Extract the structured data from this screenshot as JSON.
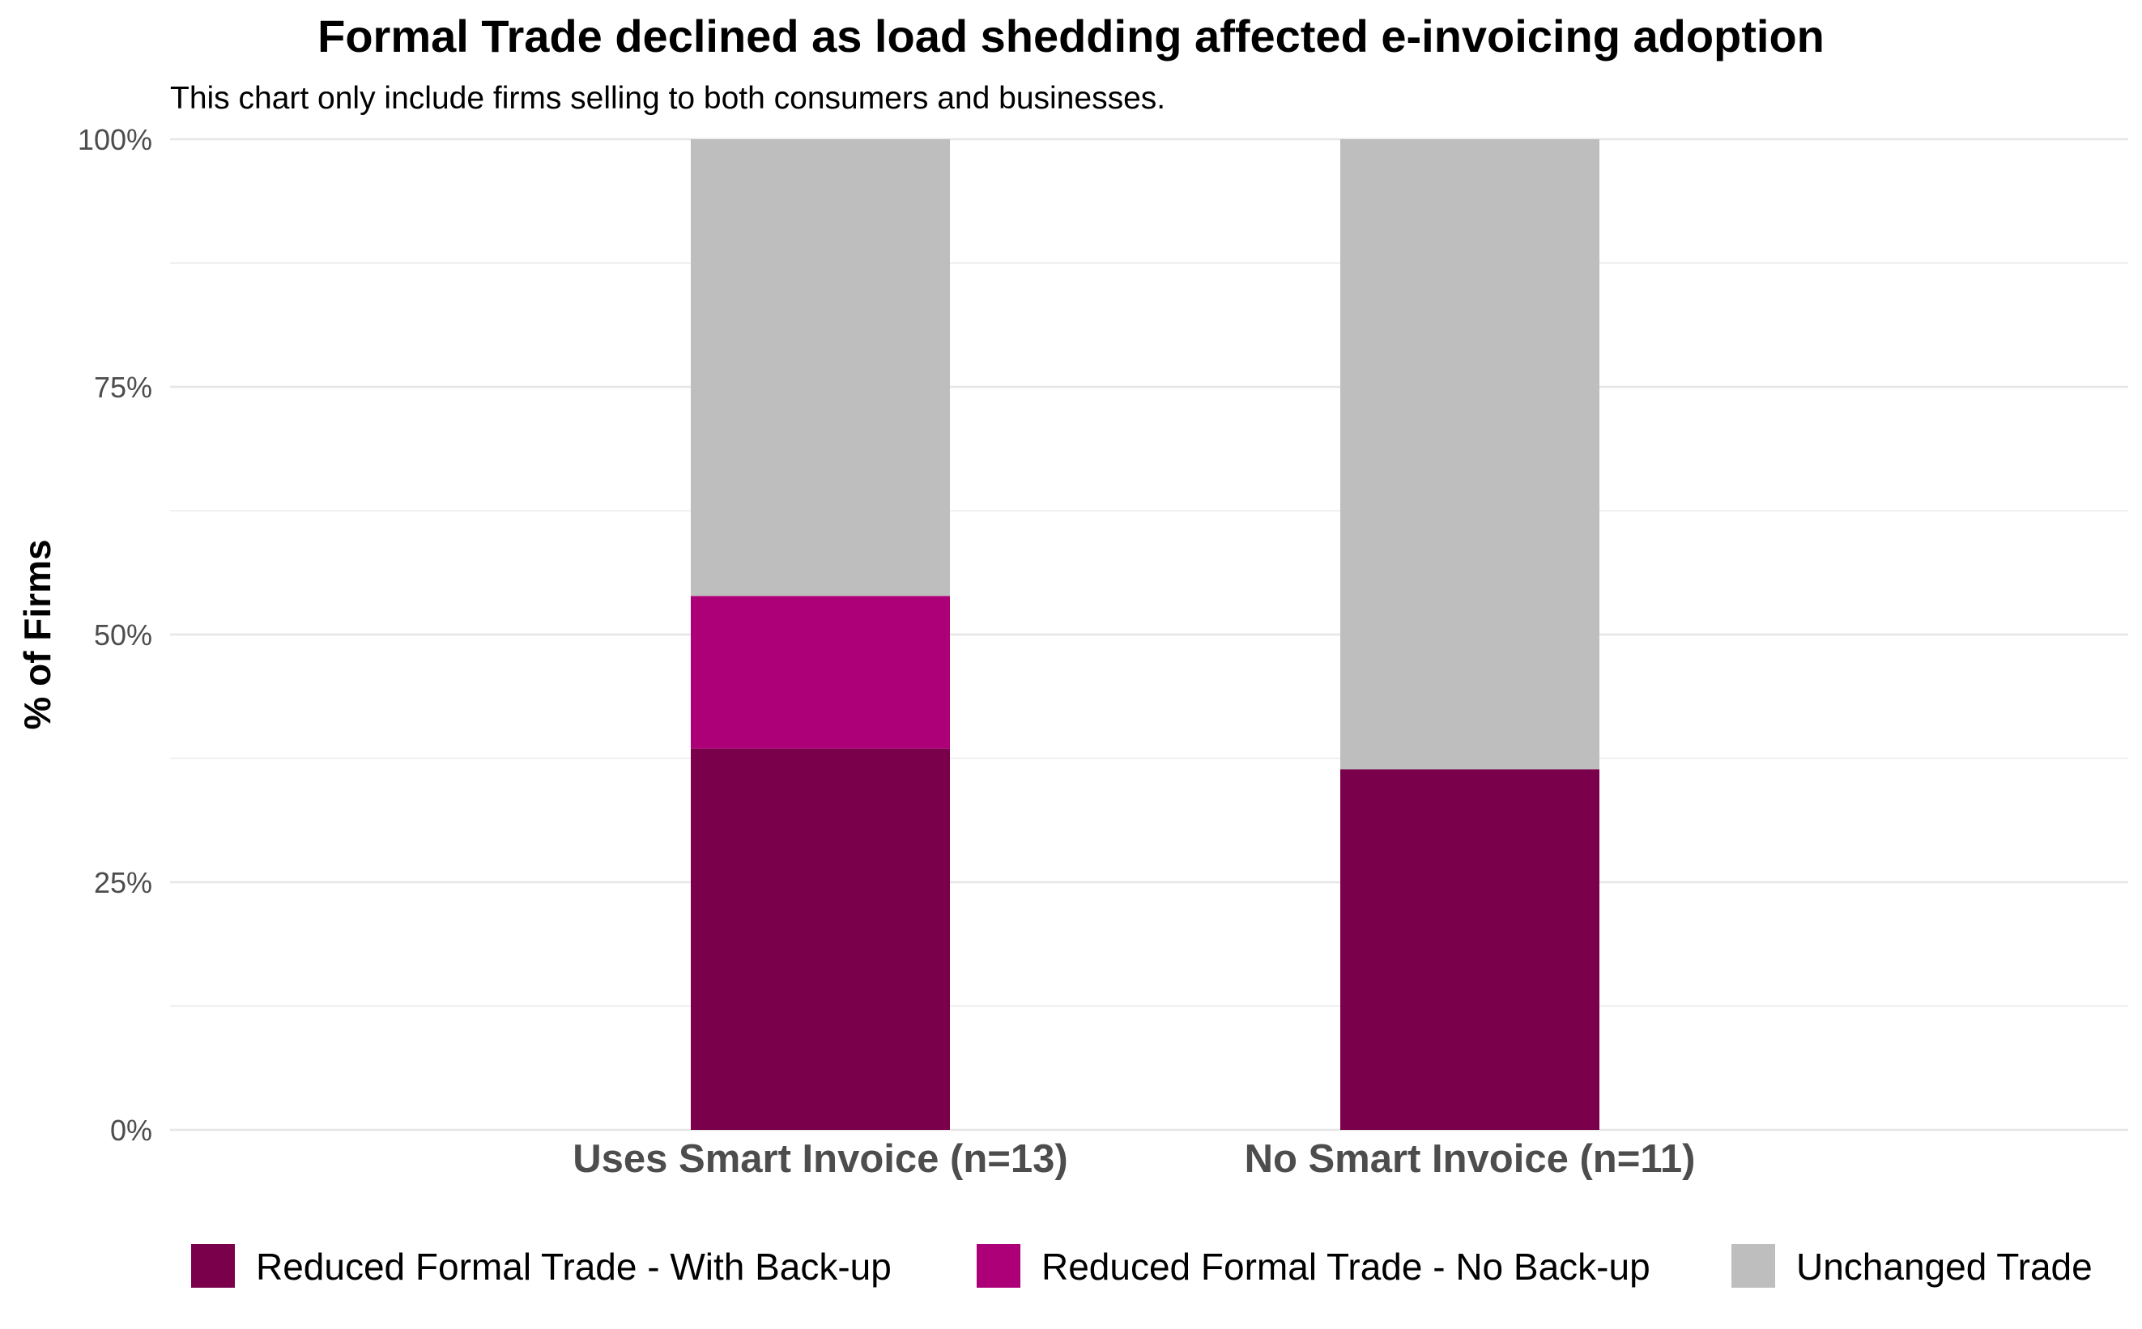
{
  "chart_data": {
    "type": "bar",
    "stacked": true,
    "title": "Formal Trade declined as load shedding affected e-invoicing adoption",
    "subtitle": "This chart only include firms selling to both consumers and businesses.",
    "xlabel": "",
    "ylabel": "% of Firms",
    "ylim": [
      0,
      1
    ],
    "y_ticks": [
      0,
      0.25,
      0.5,
      0.75,
      1.0
    ],
    "y_tick_labels": [
      "0%",
      "25%",
      "50%",
      "75%",
      "100%"
    ],
    "categories": [
      "Uses Smart Invoice (n=13)",
      "No Smart Invoice (n=11)"
    ],
    "series": [
      {
        "name": "Reduced Formal Trade - With Back-up",
        "color": "#7a004c",
        "values": [
          0.385,
          0.364
        ]
      },
      {
        "name": "Reduced Formal Trade - No Back-up",
        "color": "#ad0078",
        "values": [
          0.154,
          0.0
        ]
      },
      {
        "name": "Unchanged Trade",
        "color": "#bebebe",
        "values": [
          0.461,
          0.636
        ]
      }
    ],
    "grid": true,
    "legend_position": "bottom"
  }
}
